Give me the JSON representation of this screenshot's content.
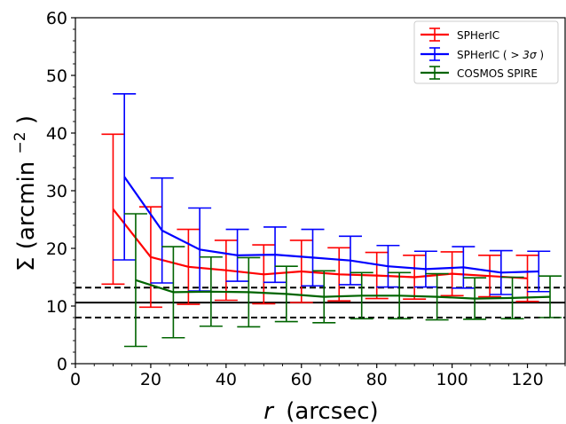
{
  "chart_data": {
    "type": "line",
    "xlabel_var": "r",
    "xlabel_unit": "(arcsec)",
    "ylabel": "Σ (arcmin",
    "ylabel_exp": "−2",
    "ylabel_close": ")",
    "xlim": [
      0,
      130
    ],
    "ylim": [
      0,
      60
    ],
    "xticks": [
      0,
      20,
      40,
      60,
      80,
      100,
      120
    ],
    "yticks": [
      0,
      10,
      20,
      30,
      40,
      50,
      60
    ],
    "grid": false,
    "legend_position": "top-right",
    "series": [
      {
        "name": "SPHerIC",
        "color": "#ff0000",
        "x": [
          10,
          20,
          30,
          40,
          50,
          60,
          70,
          80,
          90,
          100,
          110,
          120
        ],
        "y": [
          26.8,
          18.5,
          16.8,
          16.2,
          15.5,
          16.0,
          15.5,
          15.3,
          15.0,
          15.6,
          15.2,
          14.8
        ],
        "yerr": [
          13.0,
          8.7,
          6.5,
          5.2,
          5.1,
          5.4,
          4.6,
          4.0,
          3.8,
          3.8,
          3.6,
          4.0
        ]
      },
      {
        "name": "SPHerIC (>3σ)",
        "color": "#0000ff",
        "x": [
          13,
          23,
          33,
          43,
          53,
          63,
          73,
          83,
          93,
          103,
          113,
          123
        ],
        "y": [
          32.4,
          23.1,
          19.8,
          18.8,
          18.9,
          18.4,
          17.9,
          16.9,
          16.4,
          16.7,
          15.8,
          16.0
        ],
        "yerr": [
          14.4,
          9.1,
          7.2,
          4.5,
          4.8,
          4.9,
          4.2,
          3.6,
          3.1,
          3.6,
          3.8,
          3.5
        ]
      },
      {
        "name": "COSMOS SPIRE",
        "color": "#006400",
        "x": [
          16,
          26,
          36,
          46,
          56,
          66,
          76,
          86,
          96,
          106,
          116,
          126
        ],
        "y": [
          14.5,
          12.4,
          12.5,
          12.4,
          12.1,
          11.6,
          11.8,
          11.8,
          11.6,
          11.3,
          11.4,
          11.6
        ],
        "yerr": [
          11.5,
          7.9,
          6.0,
          6.0,
          4.8,
          4.5,
          4.0,
          4.0,
          4.0,
          3.6,
          3.6,
          3.6
        ]
      }
    ],
    "reference_line": {
      "y": 10.6,
      "color": "#000000"
    },
    "reference_band": {
      "low": 8.0,
      "high": 13.2,
      "color": "#000000"
    },
    "legend_labels": {
      "s0": "SPHerIC",
      "s1_pre": "SPHerIC (",
      "s1_sym": "> 3σ",
      "s1_post": ")",
      "s2": "COSMOS SPIRE"
    }
  }
}
